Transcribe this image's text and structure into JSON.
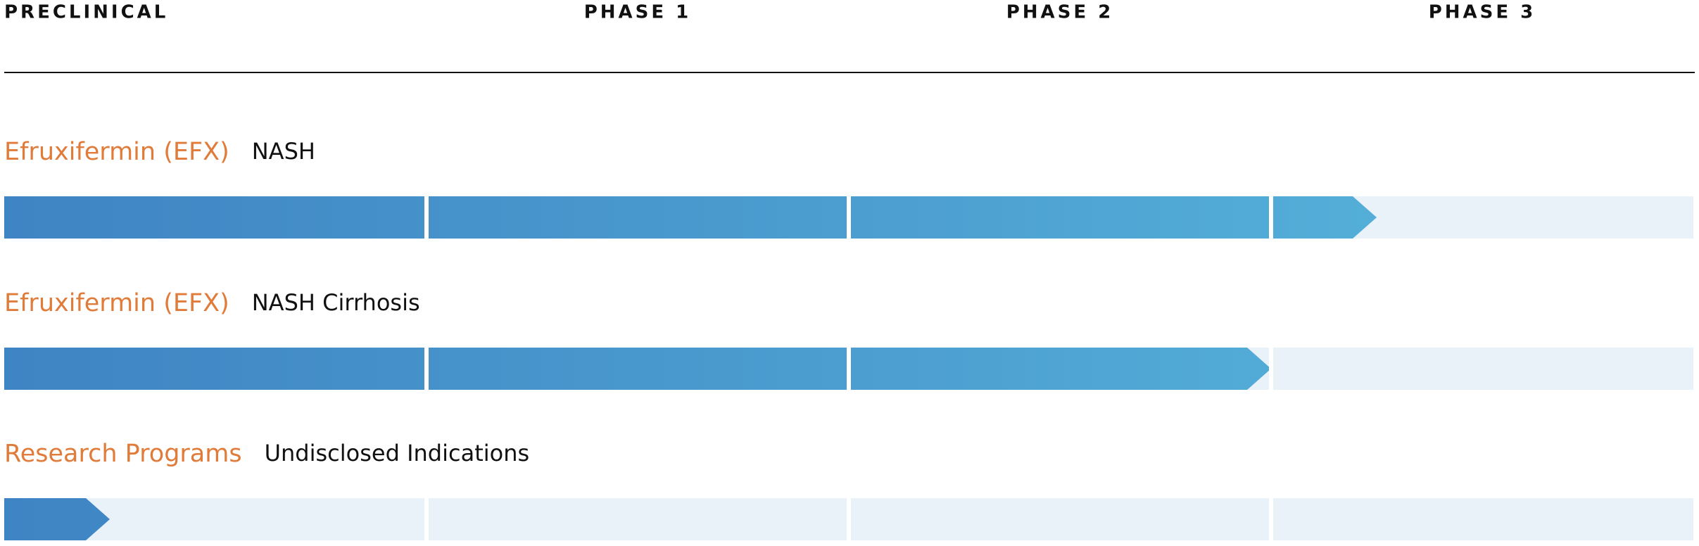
{
  "header": {
    "phases": [
      "PRECLINICAL",
      "PHASE 1",
      "PHASE 2",
      "PHASE 3"
    ]
  },
  "programs": [
    {
      "name": "Efruxifermin (EFX)",
      "indication": "NASH",
      "progress": 3.25
    },
    {
      "name": "Efruxifermin (EFX)",
      "indication": "NASH Cirrhosis",
      "progress": 3
    },
    {
      "name": "Research Programs",
      "indication": "Undisclosed Indications",
      "progress": 0.25
    }
  ]
}
